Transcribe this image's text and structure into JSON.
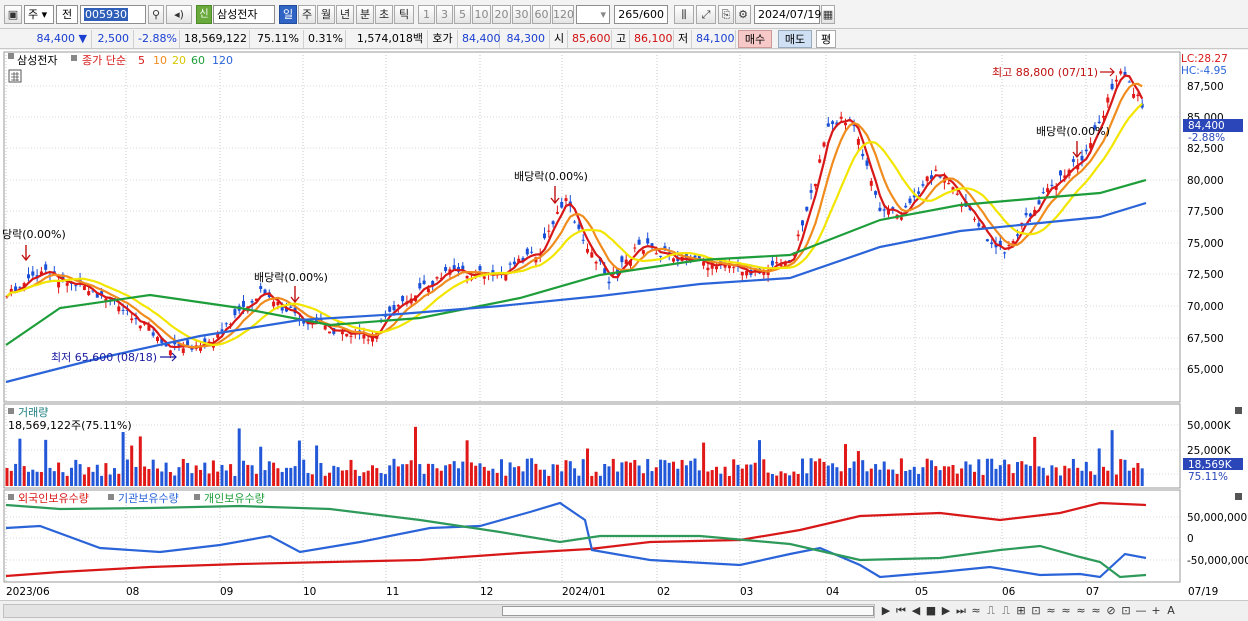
{
  "toolbar": {
    "type_select": "주",
    "prefix": "전",
    "code": "005930",
    "new_badge": "신",
    "name": "삼성전자",
    "periods": [
      "일",
      "주",
      "월",
      "년",
      "분",
      "초",
      "틱"
    ],
    "selected_period": "일",
    "intervals": [
      "1",
      "3",
      "5",
      "10",
      "20",
      "30",
      "60",
      "120"
    ],
    "count": "265",
    "count_total": "/600",
    "date": "2024/07/19"
  },
  "quote": {
    "price": "84,400",
    "arrow": "▼",
    "change": "2,500",
    "change_pct": "-2.88%",
    "volume": "18,569,122",
    "vol_ratio": "75.11%",
    "turnover": "0.31%",
    "amount": "1,574,018백만",
    "ask_label": "호가",
    "ask": "84,400",
    "bid": "84,300",
    "open_label": "시",
    "open": "85,600",
    "high_label": "고",
    "high": "86,100",
    "low_label": "저",
    "low": "84,100",
    "buy_label": "매수",
    "sell_label": "매도",
    "flat_label": "평"
  },
  "price_panel": {
    "stock": "삼성전자",
    "ma_title": "종가 단순",
    "ma_periods": [
      "5",
      "10",
      "20",
      "60",
      "120"
    ],
    "ma_colors": [
      "#d81818",
      "#f08c1e",
      "#f2e600",
      "#1e9e3a",
      "#2a64d8"
    ],
    "lc": "LC:28.27",
    "hc": "HC:-4.95",
    "current_tag": "84,400",
    "current_pct": "-2.88%",
    "y_ticks": [
      "87,500",
      "85,000",
      "82,500",
      "80,000",
      "77,500",
      "75,000",
      "72,500",
      "70,000",
      "67,500",
      "65,000"
    ],
    "annotations": {
      "high": "최고 88,800 (07/11)",
      "low": "최저 65,600 (08/18)",
      "div1": "당락(0.00%)",
      "div2": "배당락(0.00%)",
      "div3": "배당락(0.00%)",
      "div4": "배당락(0.00%)"
    }
  },
  "volume_panel": {
    "title": "거래량",
    "value": "18,569,122주(75.11%)",
    "y_ticks": [
      "50,000K",
      "25,000K"
    ],
    "current_tag": "18,569K",
    "current_pct": "75.11%"
  },
  "holding_panel": {
    "foreign": "외국인보유수량",
    "institution": "기관보유수량",
    "individual": "개인보유수량",
    "y_ticks": [
      "50,000,000",
      "0",
      "-50,000,000"
    ]
  },
  "x_axis": [
    "2023/06",
    "08",
    "09",
    "10",
    "11",
    "12",
    "2024/01",
    "02",
    "03",
    "04",
    "05",
    "06",
    "07",
    "07/19"
  ],
  "bottom_icons": [
    "▶",
    "⏮",
    "◀",
    "■",
    "▶",
    "⏭",
    "≈",
    "⎍",
    "⎍",
    "⊞",
    "⊡",
    "≈",
    "≈",
    "≈",
    "≈",
    "⊘",
    "⊡",
    "—",
    "+",
    "A"
  ]
}
